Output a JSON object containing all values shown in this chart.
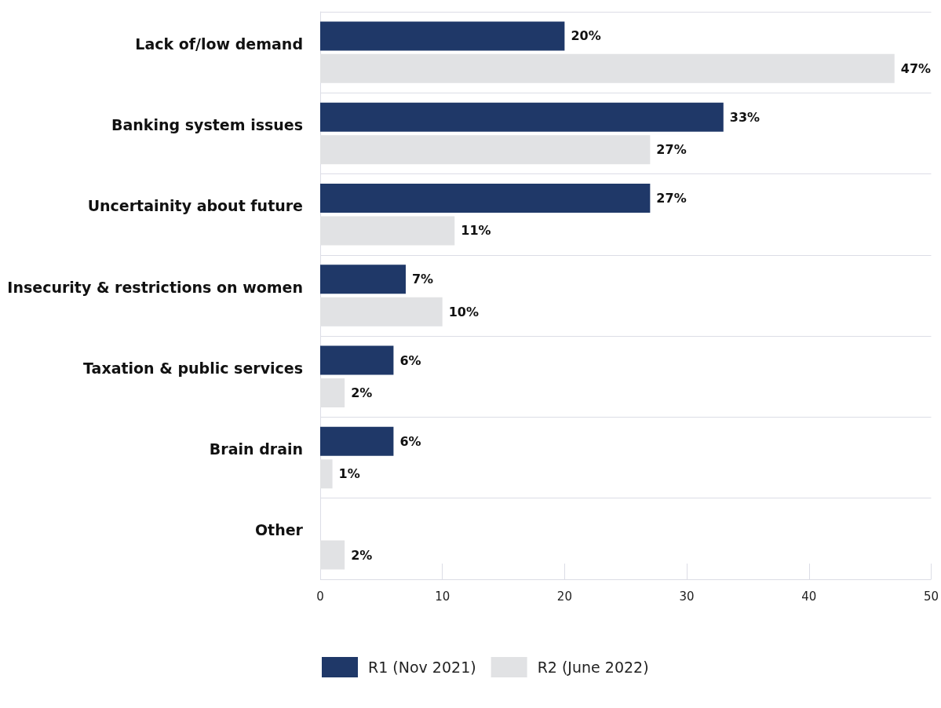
{
  "chart_data": {
    "type": "bar",
    "orientation": "horizontal",
    "categories": [
      "Lack of/low demand",
      "Banking system issues",
      "Uncertainity about future",
      "Insecurity & restrictions on women",
      "Taxation & public services",
      "Brain drain",
      "Other"
    ],
    "series": [
      {
        "name": "R1 (Nov 2021)",
        "color": "#1f3868",
        "values": [
          20,
          33,
          27,
          7,
          6,
          6,
          null
        ],
        "value_labels": [
          "20%",
          "33%",
          "27%",
          "7%",
          "6%",
          "6%",
          null
        ]
      },
      {
        "name": "R2 (June 2022)",
        "color": "#e1e2e4",
        "values": [
          47,
          27,
          11,
          10,
          2,
          1,
          2
        ],
        "value_labels": [
          "47%",
          "27%",
          "11%",
          "10%",
          "2%",
          "1%",
          "2%"
        ]
      }
    ],
    "xlim": [
      0,
      50
    ],
    "xticks": [
      0,
      10,
      20,
      30,
      40,
      50
    ],
    "grid": "y",
    "legend": "bottom"
  }
}
